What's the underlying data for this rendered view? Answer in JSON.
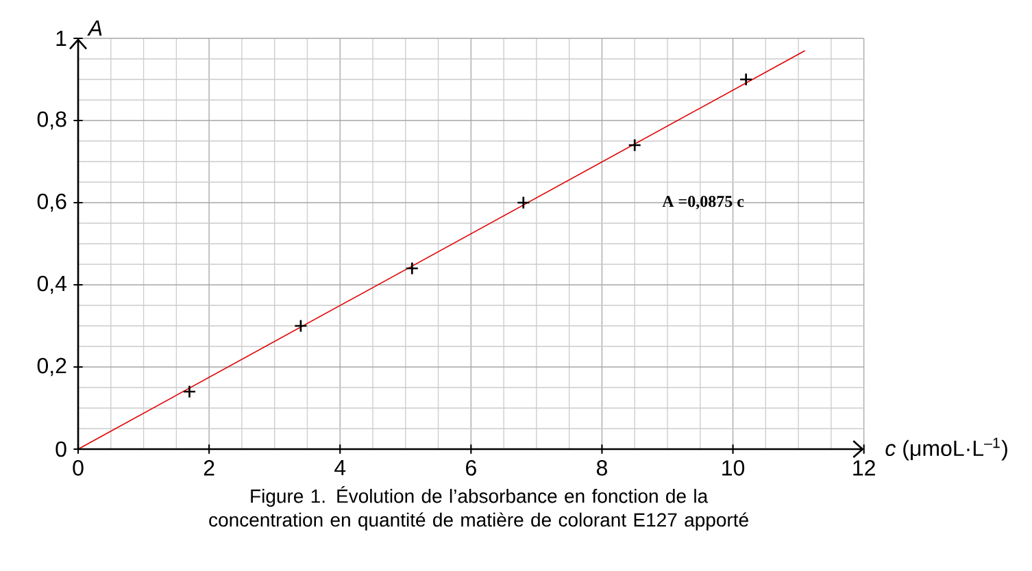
{
  "chart_data": {
    "type": "scatter",
    "title": "Figure 1. Évolution de l’absorbance en fonction de la concentration en quantité de matière de colorant E127 apporté",
    "xlabel": "*c* (μmoL·L$^{–1}$)",
    "ylabel": "A",
    "xlim": [
      0,
      12
    ],
    "ylim": [
      0,
      1
    ],
    "xticks": [
      0,
      2,
      4,
      6,
      8,
      10,
      12
    ],
    "yticks": [
      0,
      {
        "value": 0.2,
        "label": "0,2"
      },
      {
        "value": 0.4,
        "label": "0,4"
      },
      {
        "value": 0.6,
        "label": "0,6"
      },
      {
        "value": 0.8,
        "label": "0,8"
      },
      1
    ],
    "grid": true,
    "marker": "cross",
    "annotations": [
      "A =0,0875 c"
    ],
    "series": [
      {
        "type": "scatter",
        "color": "#000000",
        "x": [
          1.7,
          3.4,
          5.1,
          6.8,
          8.5,
          10.2
        ],
        "values": [
          0.14,
          0.3,
          0.44,
          0.6,
          0.74,
          0.9
        ]
      },
      {
        "type": "line",
        "color": "#e00000",
        "x": [
          0,
          11.1
        ],
        "values": [
          0,
          0.97
        ]
      }
    ]
  }
}
